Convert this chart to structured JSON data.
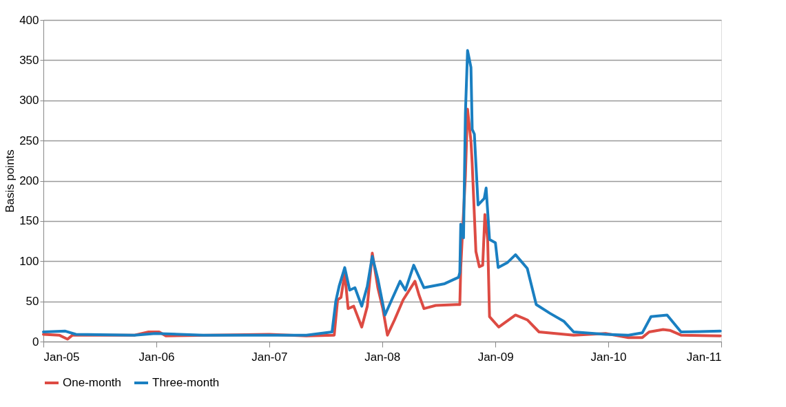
{
  "chart_data": {
    "type": "line",
    "ylabel": "Basis points",
    "xlim": [
      "2005-01-01",
      "2011-01-01"
    ],
    "xticks": [
      {
        "value": "2005-01-01",
        "label": "Jan-05"
      },
      {
        "value": "2006-01-01",
        "label": "Jan-06"
      },
      {
        "value": "2007-01-01",
        "label": "Jan-07"
      },
      {
        "value": "2008-01-01",
        "label": "Jan-08"
      },
      {
        "value": "2009-01-01",
        "label": "Jan-09"
      },
      {
        "value": "2010-01-01",
        "label": "Jan-10"
      },
      {
        "value": "2011-01-01",
        "label": "Jan-11"
      }
    ],
    "ylim": [
      0,
      400
    ],
    "yticks": [
      0,
      50,
      100,
      150,
      200,
      250,
      300,
      350,
      400
    ],
    "grid": "y",
    "legend": "bottom",
    "line_style": "solid",
    "marker": "none",
    "series": [
      {
        "name": "One-month",
        "color": "#dd4b43",
        "x": [
          "2005-01-01",
          "2005-02-21",
          "2005-03-20",
          "2005-04-05",
          "2005-10-23",
          "2005-12-07",
          "2006-01-10",
          "2006-02-01",
          "2007-01-01",
          "2007-05-01",
          "2007-07-30",
          "2007-08-10",
          "2007-08-21",
          "2007-09-02",
          "2007-09-13",
          "2007-10-01",
          "2007-10-27",
          "2007-11-14",
          "2007-11-30",
          "2007-12-18",
          "2008-01-03",
          "2008-01-18",
          "2008-02-10",
          "2008-03-09",
          "2008-04-16",
          "2008-04-29",
          "2008-05-15",
          "2008-06-22",
          "2008-08-28",
          "2008-09-08",
          "2008-09-11",
          "2008-09-26",
          "2008-10-03",
          "2008-10-14",
          "2008-10-18",
          "2008-10-30",
          "2008-11-10",
          "2008-11-21",
          "2008-11-28",
          "2008-12-07",
          "2008-12-13",
          "2009-01-12",
          "2009-03-07",
          "2009-04-14",
          "2009-05-22",
          "2009-09-11",
          "2009-12-23",
          "2010-03-07",
          "2010-04-21",
          "2010-05-13",
          "2010-06-27",
          "2010-07-19",
          "2010-08-24",
          "2010-12-29"
        ],
        "values": [
          9,
          8,
          3,
          8,
          8,
          12,
          12,
          7,
          9,
          7,
          8,
          52,
          55,
          85,
          41,
          44,
          18,
          44,
          110,
          67,
          41,
          8,
          27,
          52,
          75,
          58,
          41,
          45,
          46,
          46,
          92,
          206,
          289,
          249,
          221,
          112,
          93,
          95,
          158,
          127,
          31,
          18,
          33,
          27,
          12,
          8,
          10,
          5,
          5,
          12,
          15,
          14,
          8,
          7
        ]
      },
      {
        "name": "Three-month",
        "color": "#1a7fc1",
        "x": [
          "2005-01-01",
          "2005-03-13",
          "2005-04-16",
          "2005-10-23",
          "2005-12-29",
          "2006-06-02",
          "2007-01-01",
          "2007-05-01",
          "2007-07-23",
          "2007-08-04",
          "2007-08-15",
          "2007-09-02",
          "2007-09-18",
          "2007-10-05",
          "2007-10-27",
          "2007-11-14",
          "2007-11-30",
          "2007-12-18",
          "2008-01-10",
          "2008-02-01",
          "2008-02-28",
          "2008-03-16",
          "2008-04-12",
          "2008-05-15",
          "2008-07-21",
          "2008-09-04",
          "2008-09-08",
          "2008-09-11",
          "2008-09-20",
          "2008-09-26",
          "2008-10-03",
          "2008-10-14",
          "2008-10-18",
          "2008-10-25",
          "2008-11-06",
          "2008-11-26",
          "2008-12-02",
          "2008-12-13",
          "2009-01-01",
          "2009-01-10",
          "2009-02-08",
          "2009-03-07",
          "2009-04-14",
          "2009-05-13",
          "2009-06-27",
          "2009-08-11",
          "2009-09-11",
          "2009-12-23",
          "2010-03-07",
          "2010-04-21",
          "2010-05-19",
          "2010-07-10",
          "2010-08-24",
          "2010-12-29"
        ],
        "values": [
          12,
          13,
          9,
          8,
          10,
          8,
          8,
          8,
          12,
          50,
          69,
          92,
          64,
          67,
          44,
          69,
          106,
          78,
          33,
          52,
          75,
          64,
          95,
          67,
          72,
          80,
          86,
          146,
          129,
          283,
          362,
          341,
          264,
          258,
          170,
          178,
          191,
          127,
          123,
          92,
          98,
          108,
          91,
          46,
          35,
          25,
          12,
          9,
          8,
          11,
          31,
          33,
          12,
          13
        ]
      }
    ]
  }
}
